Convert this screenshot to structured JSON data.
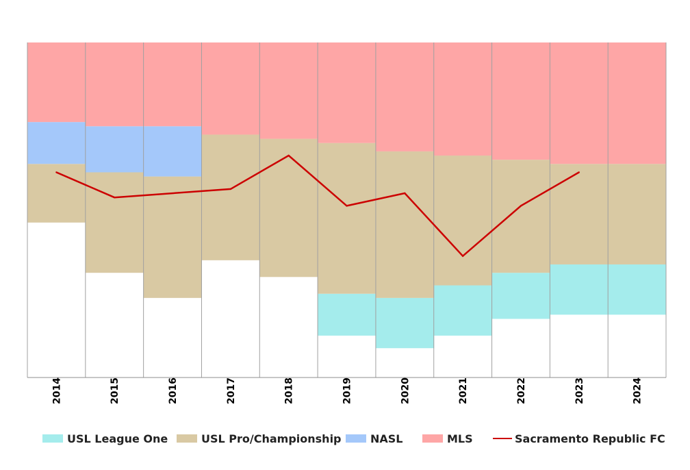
{
  "chart_data": {
    "type": "area",
    "title": "",
    "xlabel": "",
    "ylabel": "",
    "ylim": [
      0,
      80
    ],
    "grid": "vertical",
    "legend_position": "bottom",
    "categories": [
      "2014",
      "2015",
      "2016",
      "2017",
      "2018",
      "2019",
      "2020",
      "2021",
      "2022",
      "2023",
      "2024"
    ],
    "bands": [
      {
        "name": "USL League One",
        "color": "#a4ecec",
        "lower": [
          null,
          null,
          null,
          null,
          null,
          10,
          7,
          10,
          14,
          15,
          15
        ],
        "upper": [
          null,
          null,
          null,
          null,
          null,
          20,
          19,
          22,
          25,
          27,
          27
        ]
      },
      {
        "name": "USL Pro/Championship",
        "color": "#d9c9a3",
        "lower": [
          37,
          25,
          19,
          28,
          24,
          20,
          19,
          22,
          25,
          27,
          27
        ],
        "upper": [
          51,
          49,
          48,
          58,
          57,
          56,
          54,
          53,
          52,
          51,
          51
        ]
      },
      {
        "name": "NASL",
        "color": "#a4c8fa",
        "lower": [
          51,
          49,
          48,
          null,
          null,
          null,
          null,
          null,
          null,
          null,
          null
        ],
        "upper": [
          61,
          60,
          60,
          null,
          null,
          null,
          null,
          null,
          null,
          null,
          null
        ]
      },
      {
        "name": "MLS",
        "color": "#fea6a6",
        "lower": [
          61,
          60,
          60,
          58,
          57,
          56,
          54,
          53,
          52,
          51,
          51
        ],
        "upper": [
          80,
          80,
          80,
          80,
          80,
          80,
          80,
          80,
          80,
          80,
          80
        ]
      }
    ],
    "series": [
      {
        "name": "Sacramento Republic FC",
        "color": "#cc0000",
        "values": [
          49,
          43,
          null,
          45,
          53,
          41,
          44,
          29,
          41,
          49,
          null
        ]
      }
    ]
  },
  "legend": [
    {
      "label": "USL League One",
      "color": "#a4ecec",
      "kind": "box"
    },
    {
      "label": "USL Pro/Championship",
      "color": "#d9c9a3",
      "kind": "box"
    },
    {
      "label": "NASL",
      "color": "#a4c8fa",
      "kind": "box"
    },
    {
      "label": "MLS",
      "color": "#fea6a6",
      "kind": "box"
    },
    {
      "label": "Sacramento Republic FC",
      "color": "#cc0000",
      "kind": "line"
    }
  ]
}
